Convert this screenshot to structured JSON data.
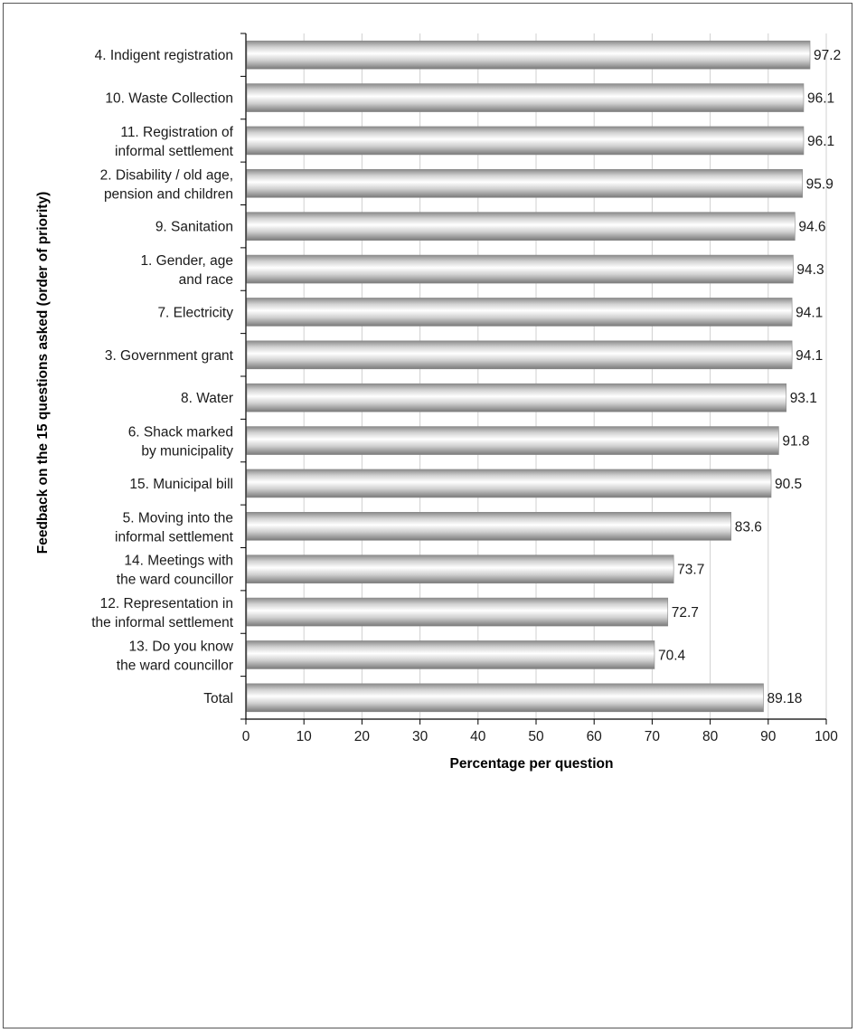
{
  "chart_data": {
    "type": "bar",
    "orientation": "horizontal",
    "xlabel": "Percentage per question",
    "ylabel": "Feedback on the 15 questions asked (order of priority)",
    "xlim": [
      0,
      100
    ],
    "xticks": [
      "0",
      "10",
      "20",
      "30",
      "40",
      "50",
      "60",
      "70",
      "80",
      "90",
      "100"
    ],
    "grid": "vertical",
    "bar_color": "#b8b8b8",
    "categories": [
      [
        "4. Indigent registration"
      ],
      [
        "10. Waste Collection"
      ],
      [
        "11. Registration of",
        "informal settlement"
      ],
      [
        "2. Disability / old age,",
        "pension and children"
      ],
      [
        "9. Sanitation"
      ],
      [
        "1. Gender, age",
        "and race"
      ],
      [
        "7. Electricity"
      ],
      [
        "3. Government grant"
      ],
      [
        "8. Water"
      ],
      [
        "6. Shack marked",
        "by municipality"
      ],
      [
        "15. Municipal bill"
      ],
      [
        "5. Moving into the",
        "informal settlement"
      ],
      [
        "14. Meetings with",
        "the ward councillor"
      ],
      [
        "12. Representation in",
        "the informal settlement"
      ],
      [
        "13. Do you know",
        "the ward councillor"
      ],
      [
        "Total"
      ]
    ],
    "values": [
      97.2,
      96.1,
      96.1,
      95.9,
      94.6,
      94.3,
      94.1,
      94.1,
      93.1,
      91.8,
      90.5,
      83.6,
      73.7,
      72.7,
      70.4,
      89.18
    ],
    "labels": [
      "97.2",
      "96.1",
      "96.1",
      "95.9",
      "94.6",
      "94.3",
      "94.1",
      "94.1",
      "93.1",
      "91.8",
      "90.5",
      "83.6",
      "73.7",
      "72.7",
      "70.4",
      "89.18"
    ]
  }
}
